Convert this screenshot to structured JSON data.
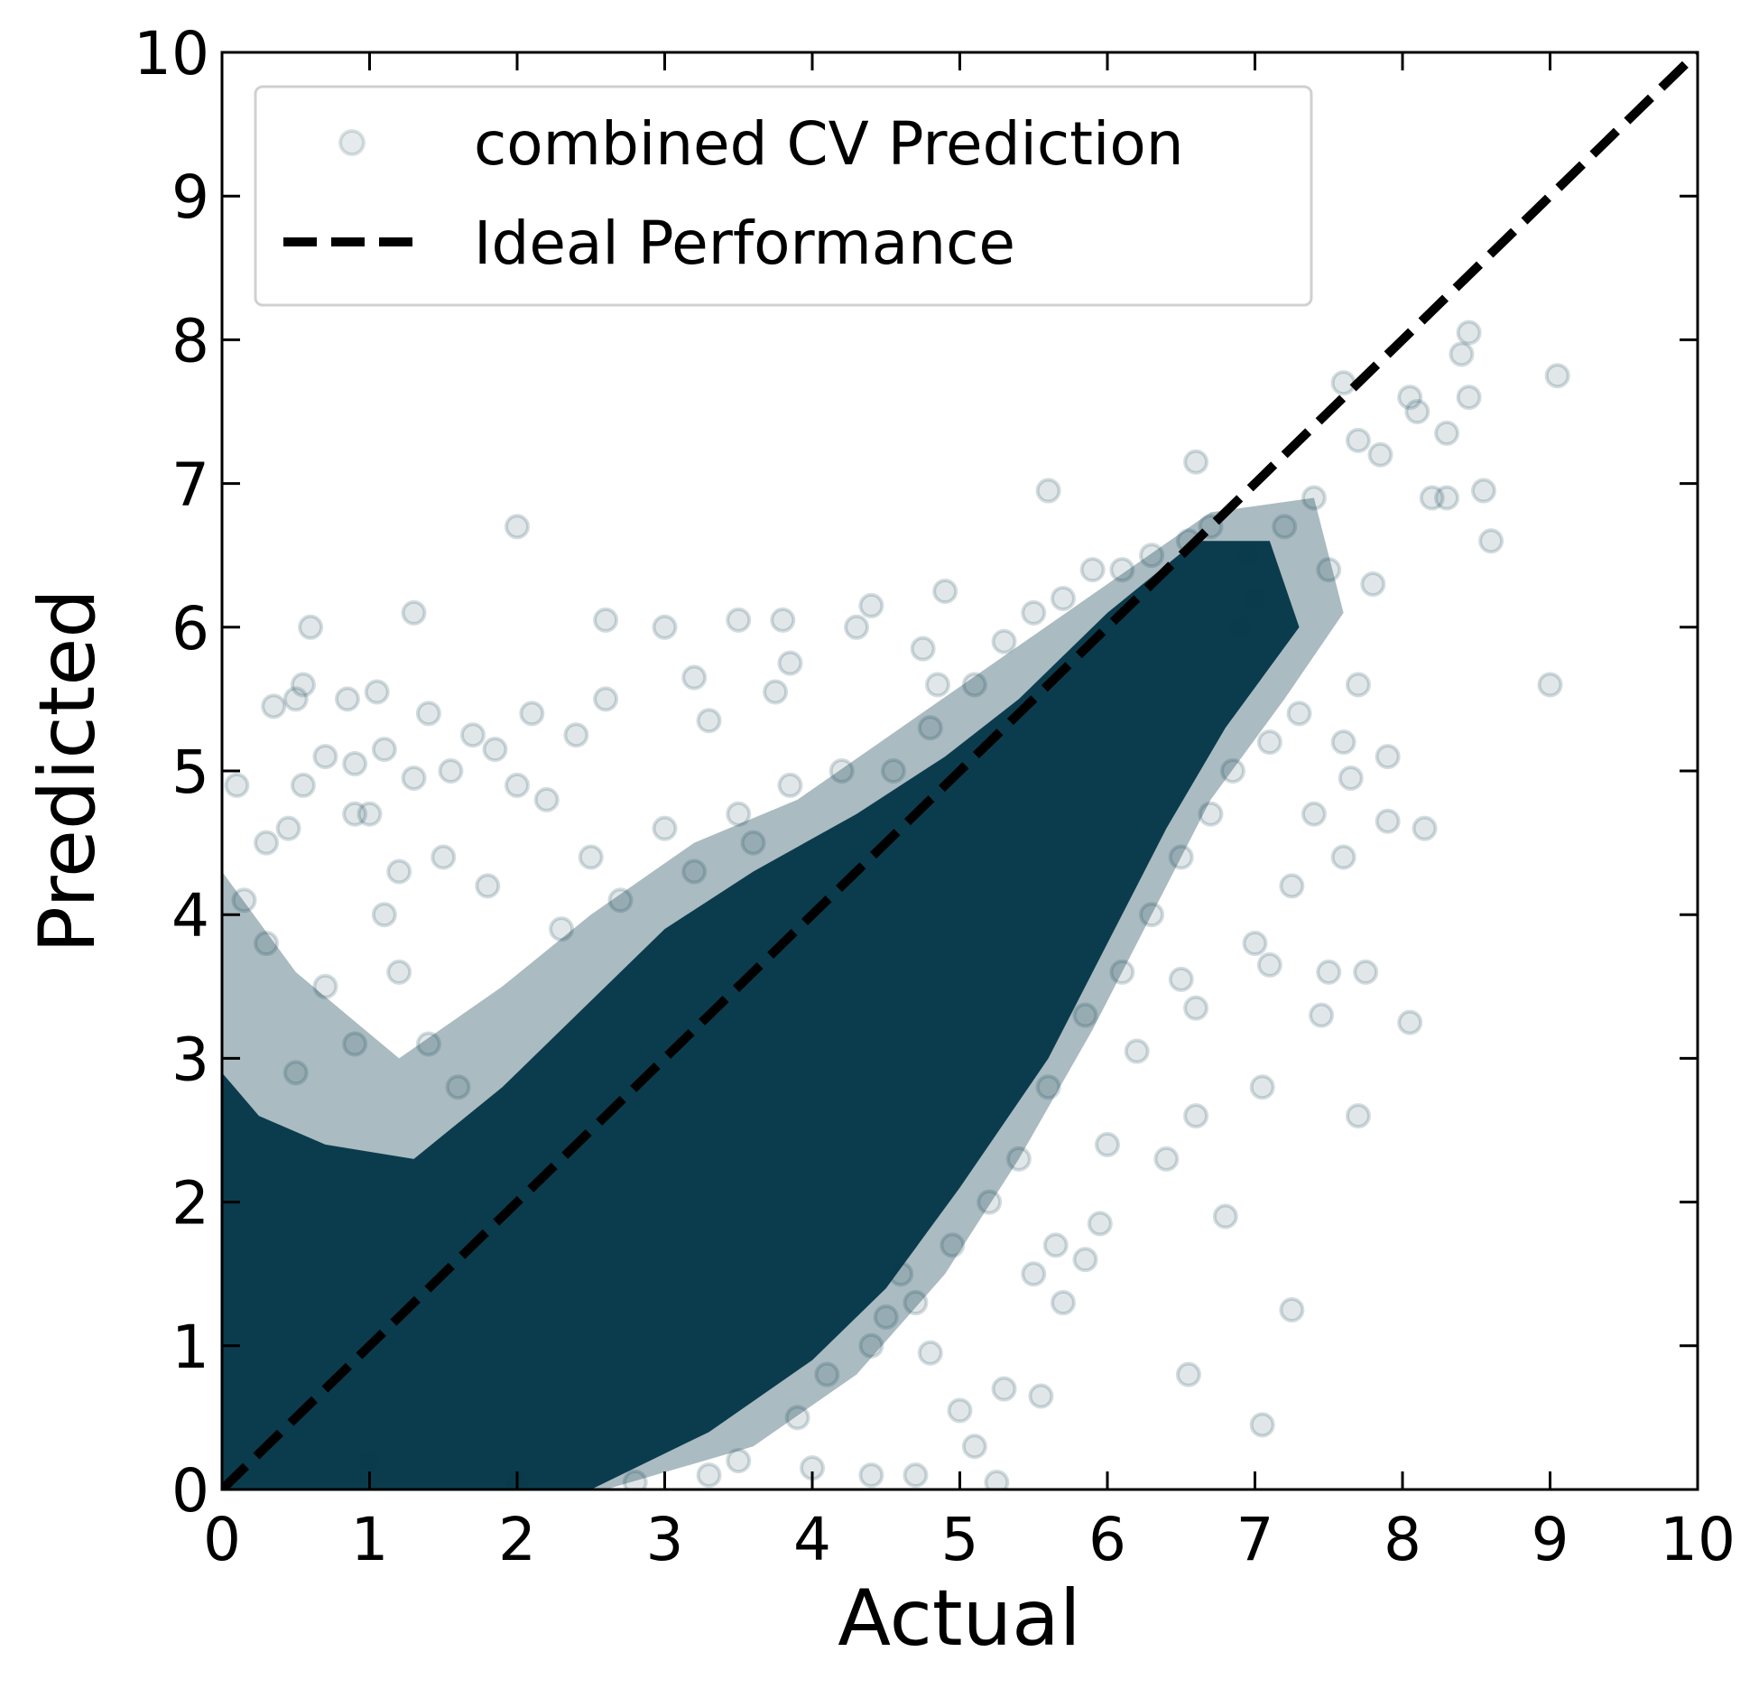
{
  "chart_data": {
    "type": "scatter",
    "xlabel": "Actual",
    "ylabel": "Predicted",
    "xlim": [
      0,
      10
    ],
    "ylim": [
      0,
      10
    ],
    "x_ticks": [
      "0",
      "1",
      "2",
      "3",
      "4",
      "5",
      "6",
      "7",
      "8",
      "9",
      "10"
    ],
    "y_ticks": [
      "0",
      "1",
      "2",
      "3",
      "4",
      "5",
      "6",
      "7",
      "8",
      "9",
      "10"
    ],
    "grid": false,
    "legend_position": "top-left",
    "series": [
      {
        "name": "combined CV Prediction",
        "kind": "scatter",
        "color": "#0b3c4d",
        "marker": "circle",
        "alpha": 0.12,
        "points": [
          [
            0.1,
            4.9
          ],
          [
            0.15,
            4.1
          ],
          [
            0.3,
            4.5
          ],
          [
            0.45,
            4.6
          ],
          [
            0.6,
            6.0
          ],
          [
            0.55,
            5.6
          ],
          [
            0.5,
            5.5
          ],
          [
            0.35,
            5.45
          ],
          [
            0.55,
            4.9
          ],
          [
            0.7,
            5.1
          ],
          [
            0.85,
            5.5
          ],
          [
            0.9,
            5.05
          ],
          [
            1.05,
            5.55
          ],
          [
            1.1,
            5.15
          ],
          [
            1.3,
            4.95
          ],
          [
            1.3,
            6.1
          ],
          [
            1.4,
            5.4
          ],
          [
            1.55,
            5.0
          ],
          [
            1.7,
            5.25
          ],
          [
            1.85,
            5.15
          ],
          [
            2.0,
            6.7
          ],
          [
            2.1,
            5.4
          ],
          [
            2.0,
            4.9
          ],
          [
            2.2,
            4.8
          ],
          [
            2.4,
            5.25
          ],
          [
            2.6,
            5.5
          ],
          [
            2.6,
            6.05
          ],
          [
            3.0,
            6.0
          ],
          [
            3.2,
            5.65
          ],
          [
            3.3,
            5.35
          ],
          [
            3.5,
            6.05
          ],
          [
            3.8,
            6.05
          ],
          [
            3.85,
            5.75
          ],
          [
            3.75,
            5.55
          ],
          [
            4.3,
            6.0
          ],
          [
            4.4,
            6.15
          ],
          [
            4.75,
            5.85
          ],
          [
            4.9,
            6.25
          ],
          [
            4.85,
            5.6
          ],
          [
            5.6,
            6.95
          ],
          [
            5.9,
            6.4
          ],
          [
            6.55,
            6.6
          ],
          [
            6.6,
            7.15
          ],
          [
            6.9,
            6.0
          ],
          [
            7.0,
            6.2
          ],
          [
            7.4,
            6.9
          ],
          [
            7.6,
            7.7
          ],
          [
            7.7,
            7.3
          ],
          [
            7.85,
            7.2
          ],
          [
            8.05,
            7.6
          ],
          [
            8.1,
            7.5
          ],
          [
            8.3,
            7.35
          ],
          [
            8.45,
            8.05
          ],
          [
            8.4,
            7.9
          ],
          [
            8.45,
            7.6
          ],
          [
            8.2,
            6.9
          ],
          [
            8.3,
            6.9
          ],
          [
            8.55,
            6.95
          ],
          [
            8.6,
            6.6
          ],
          [
            9.05,
            7.75
          ],
          [
            9.0,
            5.6
          ],
          [
            7.8,
            6.3
          ],
          [
            7.7,
            5.6
          ],
          [
            7.6,
            5.2
          ],
          [
            7.9,
            5.1
          ],
          [
            8.15,
            4.6
          ],
          [
            7.9,
            4.65
          ],
          [
            7.65,
            4.95
          ],
          [
            7.6,
            4.4
          ],
          [
            7.5,
            3.6
          ],
          [
            7.45,
            3.3
          ],
          [
            7.75,
            3.6
          ],
          [
            8.05,
            3.25
          ],
          [
            7.7,
            2.6
          ],
          [
            7.25,
            1.25
          ],
          [
            7.05,
            0.45
          ],
          [
            6.8,
            1.9
          ],
          [
            7.05,
            2.8
          ],
          [
            7.0,
            3.8
          ],
          [
            7.1,
            3.65
          ],
          [
            7.25,
            4.2
          ],
          [
            7.4,
            4.7
          ],
          [
            6.55,
            0.8
          ],
          [
            6.4,
            2.3
          ],
          [
            6.6,
            2.6
          ],
          [
            6.6,
            3.35
          ],
          [
            6.5,
            3.55
          ],
          [
            6.2,
            3.05
          ],
          [
            6.0,
            2.4
          ],
          [
            5.95,
            1.85
          ],
          [
            5.85,
            1.6
          ],
          [
            5.65,
            1.7
          ],
          [
            5.5,
            1.5
          ],
          [
            5.7,
            1.3
          ],
          [
            5.55,
            0.65
          ],
          [
            5.3,
            0.7
          ],
          [
            5.25,
            0.05
          ],
          [
            5.0,
            0.55
          ],
          [
            5.1,
            0.3
          ],
          [
            4.8,
            0.95
          ],
          [
            4.6,
            1.5
          ],
          [
            4.5,
            1.2
          ],
          [
            4.7,
            0.1
          ],
          [
            4.4,
            0.1
          ],
          [
            4.0,
            0.15
          ],
          [
            3.9,
            0.5
          ],
          [
            3.5,
            0.2
          ],
          [
            3.3,
            0.1
          ],
          [
            2.8,
            0.05
          ],
          [
            2.0,
            0.05
          ],
          [
            1.0,
            0.2
          ],
          [
            1.2,
            4.3
          ],
          [
            1.0,
            4.7
          ],
          [
            0.9,
            4.7
          ],
          [
            1.1,
            4.0
          ],
          [
            1.5,
            4.4
          ],
          [
            1.8,
            4.2
          ],
          [
            1.2,
            3.6
          ],
          [
            0.7,
            3.5
          ],
          [
            0.9,
            3.1
          ],
          [
            0.3,
            3.8
          ],
          [
            0.5,
            2.9
          ],
          [
            1.4,
            3.1
          ],
          [
            1.6,
            2.8
          ],
          [
            2.3,
            3.9
          ],
          [
            2.5,
            4.4
          ],
          [
            2.7,
            4.1
          ],
          [
            3.0,
            4.6
          ],
          [
            3.2,
            4.3
          ],
          [
            3.5,
            4.7
          ],
          [
            3.6,
            4.5
          ],
          [
            3.85,
            4.9
          ],
          [
            4.2,
            5.0
          ],
          [
            4.55,
            5.0
          ],
          [
            4.8,
            5.3
          ],
          [
            5.1,
            5.6
          ],
          [
            5.3,
            5.9
          ],
          [
            5.5,
            6.1
          ],
          [
            5.7,
            6.2
          ],
          [
            6.1,
            6.4
          ],
          [
            6.3,
            6.5
          ],
          [
            6.7,
            6.7
          ],
          [
            6.95,
            6.5
          ],
          [
            7.2,
            6.7
          ],
          [
            7.5,
            6.4
          ],
          [
            7.3,
            5.4
          ],
          [
            7.1,
            5.2
          ],
          [
            6.85,
            5.0
          ],
          [
            6.7,
            4.7
          ],
          [
            6.5,
            4.4
          ],
          [
            6.3,
            4.0
          ],
          [
            6.1,
            3.6
          ],
          [
            5.85,
            3.3
          ],
          [
            5.6,
            2.8
          ],
          [
            5.4,
            2.3
          ],
          [
            5.2,
            2.0
          ],
          [
            4.95,
            1.7
          ],
          [
            4.7,
            1.3
          ],
          [
            4.4,
            1.0
          ],
          [
            4.1,
            0.8
          ]
        ]
      },
      {
        "name": "Ideal Performance",
        "kind": "line",
        "style": "dashed",
        "color": "#000000",
        "points": [
          [
            0,
            0
          ],
          [
            10,
            10
          ]
        ]
      }
    ]
  }
}
